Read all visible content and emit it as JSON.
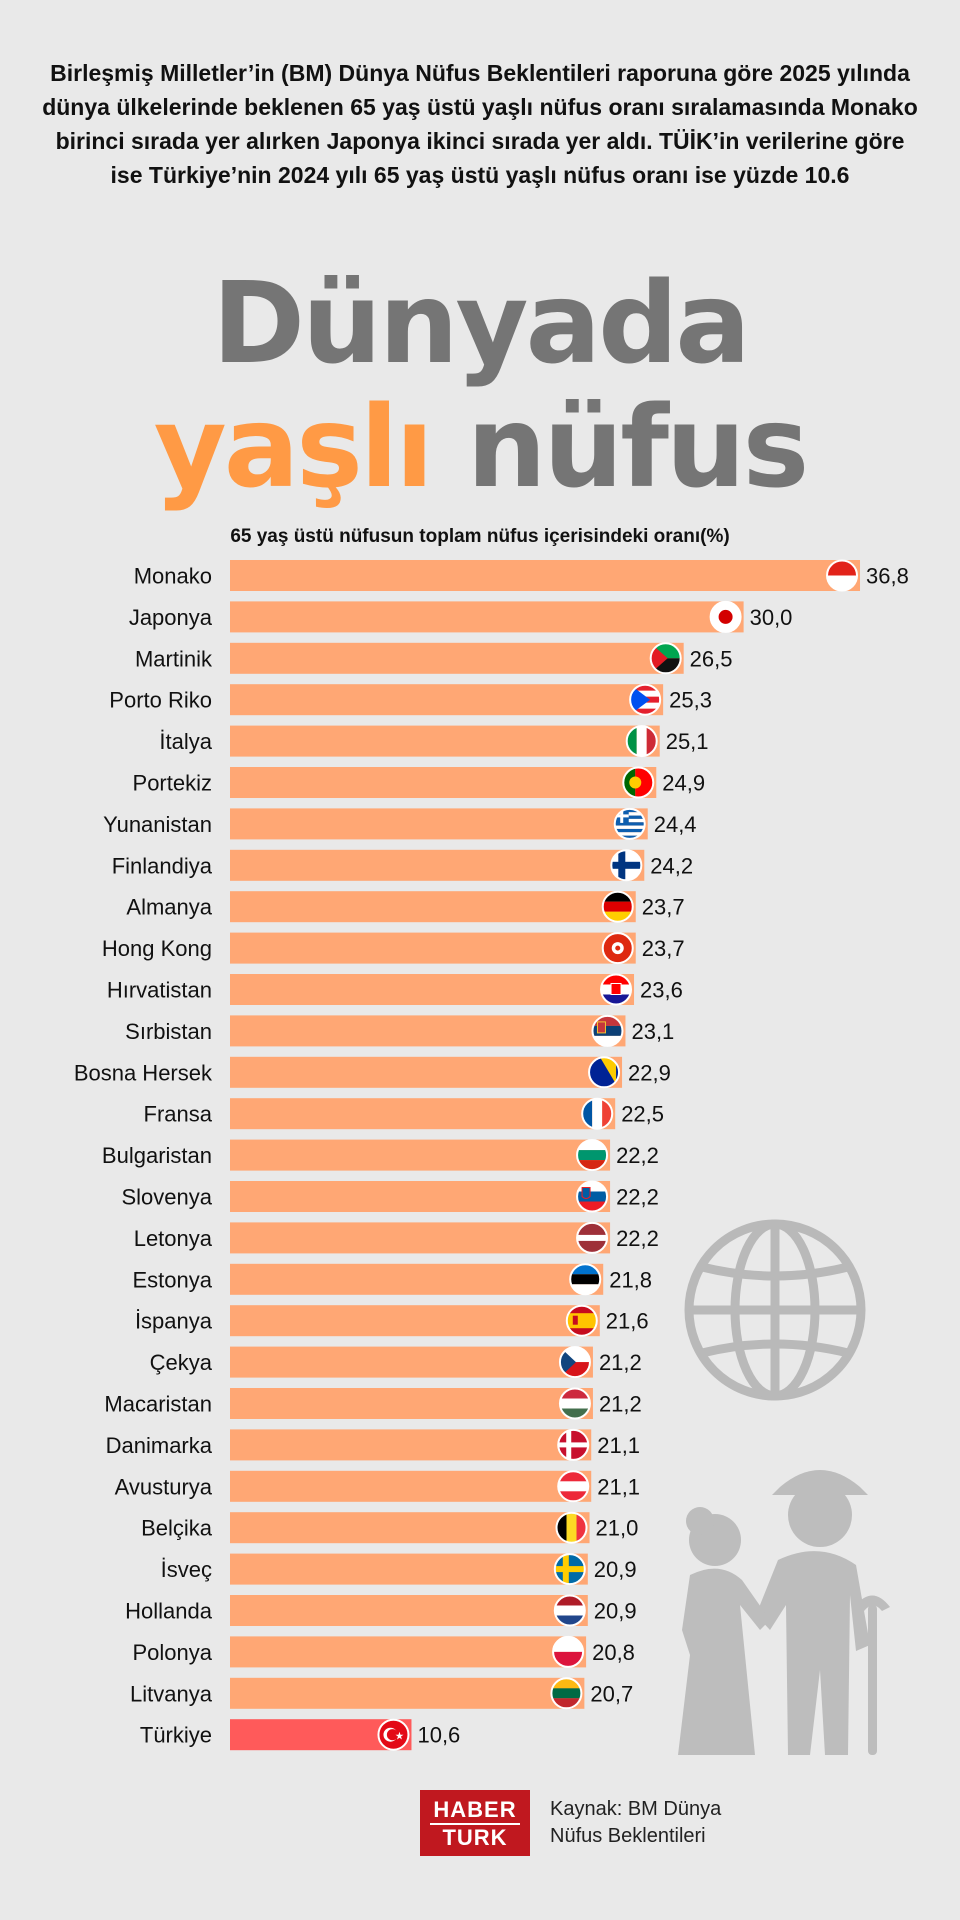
{
  "header": {
    "intro": "Birleşmiş Milletler’in (BM) Dünya Nüfus Beklentileri raporuna göre 2025 yılında dünya ülkelerinde beklenen 65 yaş üstü yaşlı nüfus oranı sıralamasında Monako birinci sırada yer alırken Japonya ikinci sırada yer aldı. TÜİK’in verilerine göre ise Türkiye’nin 2024 yılı 65 yaş üstü yaşlı nüfus oranı ise yüzde 10.6",
    "headline_line1": "Dünyada",
    "headline_word_orange": "yaşlı",
    "headline_word_grey": "nüfus"
  },
  "chart_data": {
    "type": "bar",
    "orientation": "horizontal",
    "title": "65 yaş üstü nüfusun toplam nüfus içerisindeki oranı(%)",
    "categories": [
      "Monako",
      "Japonya",
      "Martinik",
      "Porto Riko",
      "İtalya",
      "Portekiz",
      "Yunanistan",
      "Finlandiya",
      "Almanya",
      "Hong Kong",
      "Hırvatistan",
      "Sırbistan",
      "Bosna Hersek",
      "Fransa",
      "Bulgaristan",
      "Slovenya",
      "Letonya",
      "Estonya",
      "İspanya",
      "Çekya",
      "Macaristan",
      "Danimarka",
      "Avusturya",
      "Belçika",
      "İsveç",
      "Hollanda",
      "Polonya",
      "Litvanya",
      "Türkiye"
    ],
    "values": [
      36.8,
      30.0,
      26.5,
      25.3,
      25.1,
      24.9,
      24.4,
      24.2,
      23.7,
      23.7,
      23.6,
      23.1,
      22.9,
      22.5,
      22.2,
      22.2,
      22.2,
      21.8,
      21.6,
      21.2,
      21.2,
      21.1,
      21.1,
      21.0,
      20.9,
      20.9,
      20.8,
      20.7,
      10.6
    ],
    "value_labels": [
      "36,8",
      "30,0",
      "26,5",
      "25,3",
      "25,1",
      "24,9",
      "24,4",
      "24,2",
      "23,7",
      "23,7",
      "23,6",
      "23,1",
      "22,9",
      "22,5",
      "22,2",
      "22,2",
      "22,2",
      "21,8",
      "21,6",
      "21,2",
      "21,2",
      "21,1",
      "21,1",
      "21,0",
      "20,9",
      "20,9",
      "20,8",
      "20,7",
      "10,6"
    ],
    "flags": [
      "monaco-flag-icon",
      "japan-flag-icon",
      "martinique-flag-icon",
      "puerto-rico-flag-icon",
      "italy-flag-icon",
      "portugal-flag-icon",
      "greece-flag-icon",
      "finland-flag-icon",
      "germany-flag-icon",
      "hong-kong-flag-icon",
      "croatia-flag-icon",
      "serbia-flag-icon",
      "bosnia-flag-icon",
      "france-flag-icon",
      "bulgaria-flag-icon",
      "slovenia-flag-icon",
      "latvia-flag-icon",
      "estonia-flag-icon",
      "spain-flag-icon",
      "czechia-flag-icon",
      "hungary-flag-icon",
      "denmark-flag-icon",
      "austria-flag-icon",
      "belgium-flag-icon",
      "sweden-flag-icon",
      "netherlands-flag-icon",
      "poland-flag-icon",
      "lithuania-flag-icon",
      "turkey-flag-icon"
    ],
    "xlim": [
      0,
      40
    ],
    "bar_color": "#ffa774",
    "highlight_color": "#ff5a5a",
    "highlight_category": "Türkiye"
  },
  "decor": {
    "globe_icon": "globe-icon",
    "elderly_icon": "elderly-couple-icon",
    "colors": {
      "headline_orange": "#ff9a45",
      "headline_grey": "#757575",
      "decor_grey": "#bdbdbd"
    }
  },
  "footer": {
    "logo_top": "HABER",
    "logo_bottom": "TURK",
    "source": "Kaynak: BM Dünya Nüfus Beklentileri"
  }
}
